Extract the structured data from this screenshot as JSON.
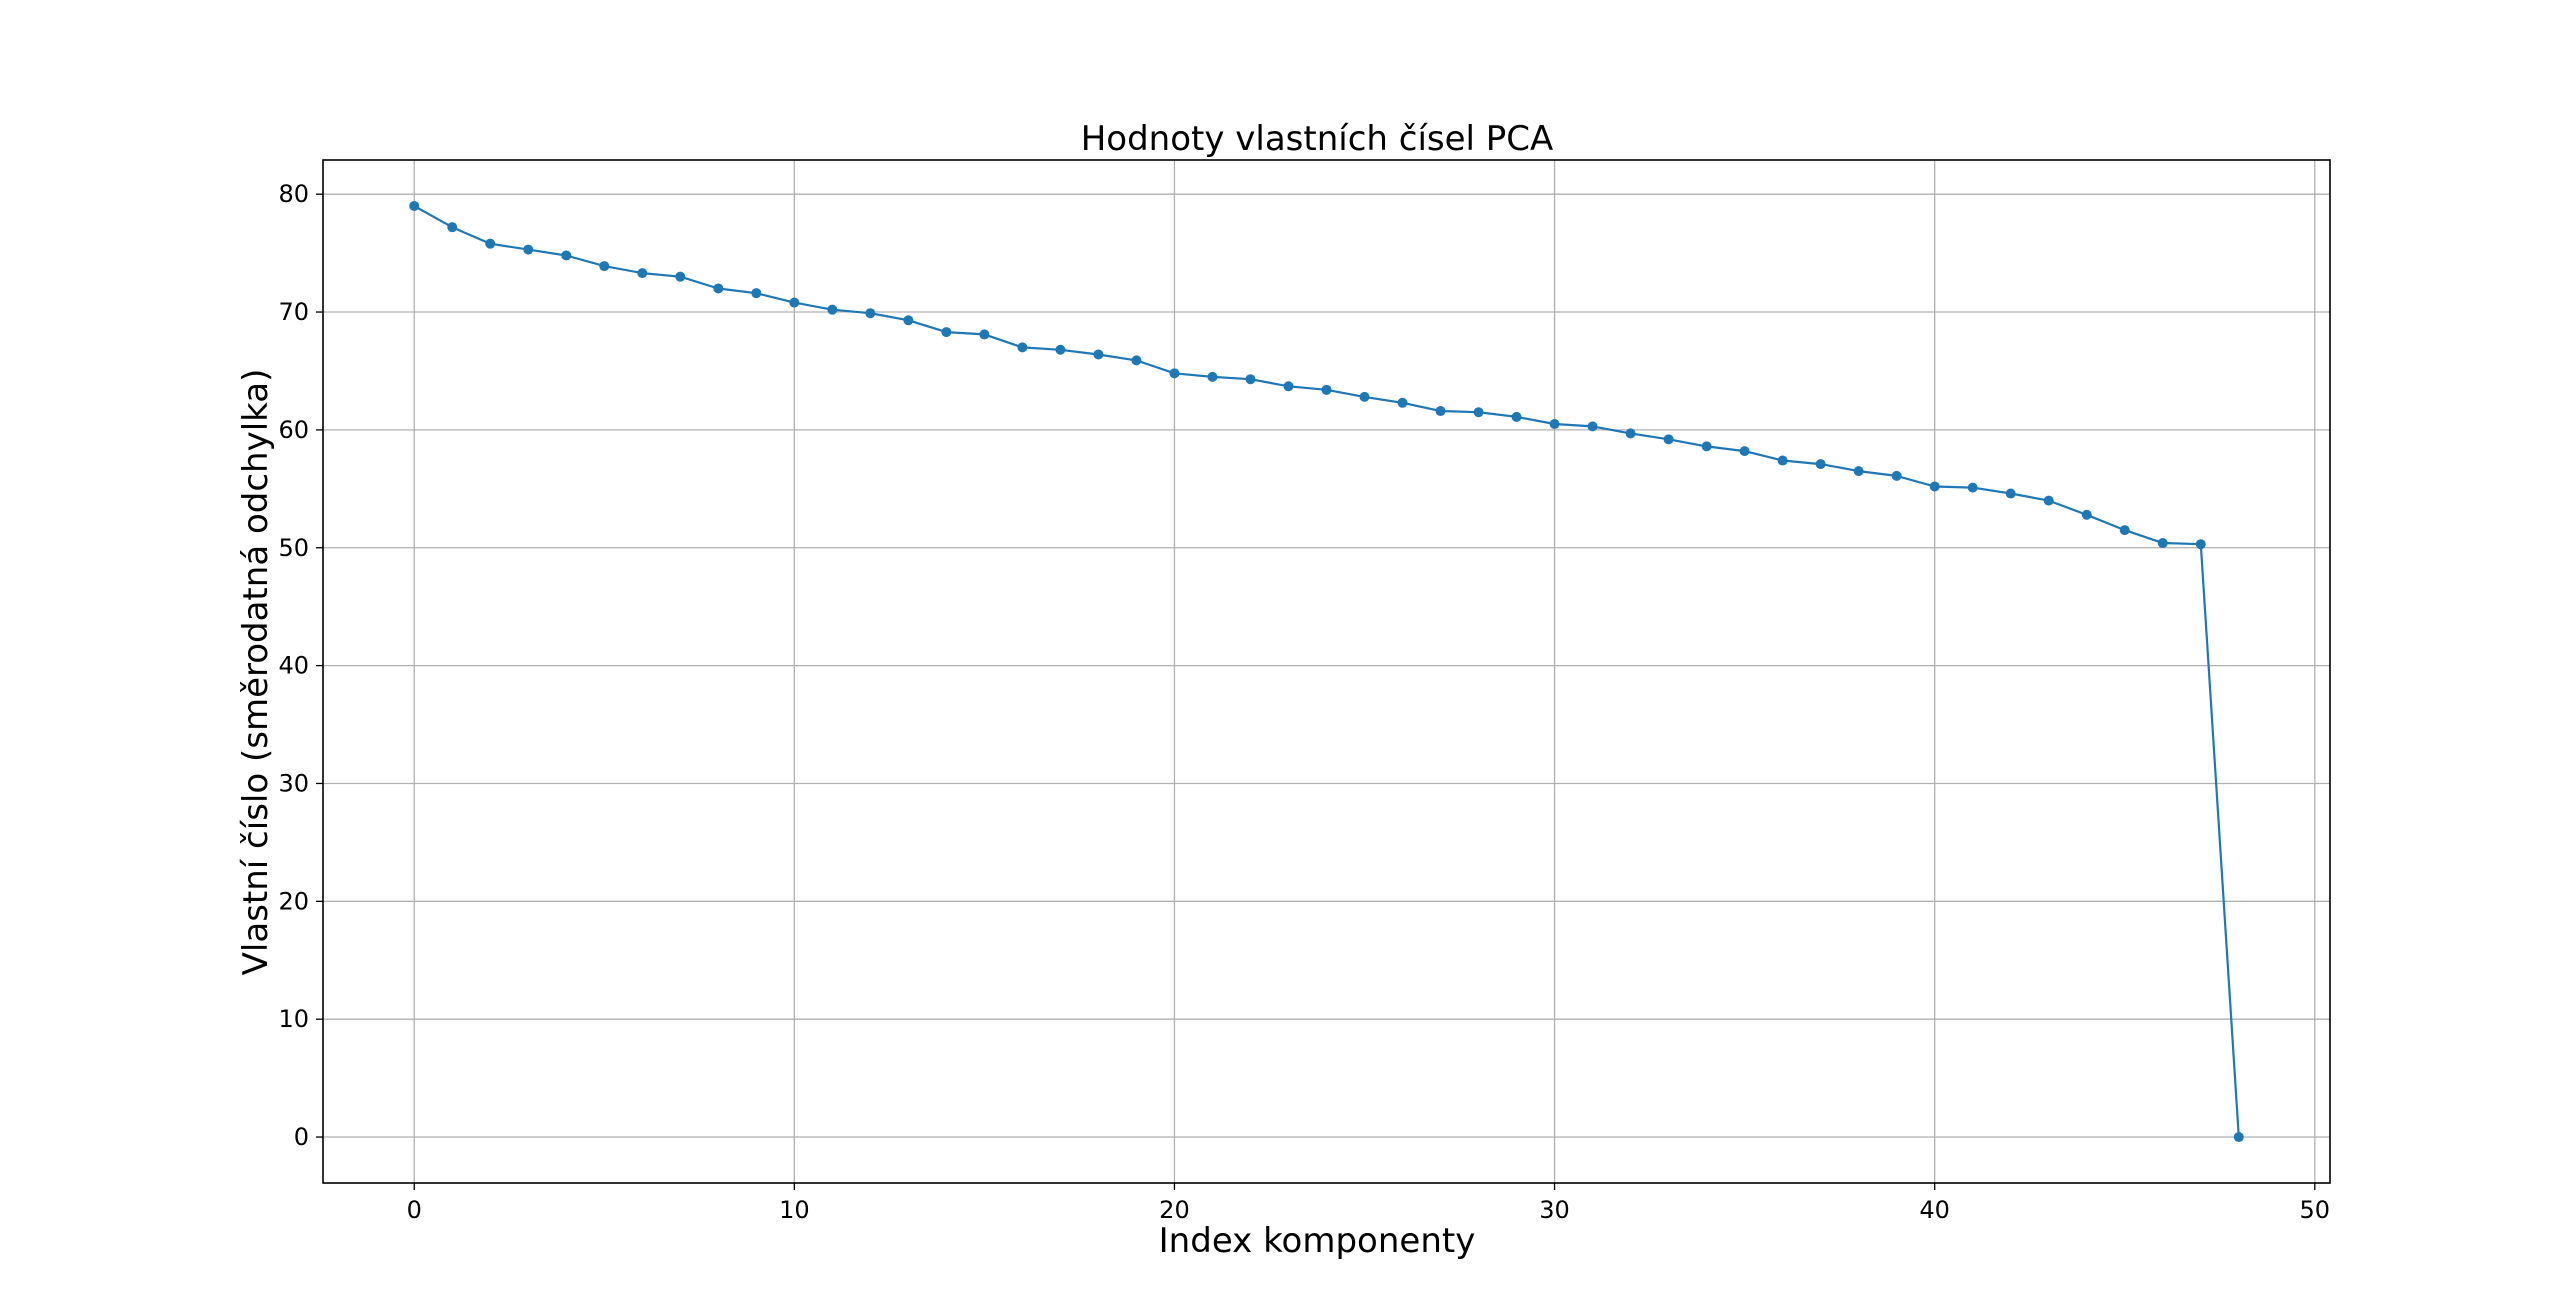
{
  "chart_data": {
    "type": "line",
    "title": "Hodnoty vlastních čísel PCA",
    "xlabel": "Index komponenty",
    "ylabel": "Vlastní číslo (směrodatná odchylka)",
    "xlim": [
      -2.4,
      50.4
    ],
    "ylim": [
      -3.9,
      82.9
    ],
    "xticks": [
      0,
      10,
      20,
      30,
      40,
      50
    ],
    "yticks": [
      0,
      10,
      20,
      30,
      40,
      50,
      60,
      70,
      80
    ],
    "grid": true,
    "line_color": "#1f77b4",
    "series": [
      {
        "x": [
          0,
          1,
          2,
          3,
          4,
          5,
          6,
          7,
          8,
          9,
          10,
          11,
          12,
          13,
          14,
          15,
          16,
          17,
          18,
          19,
          20,
          21,
          22,
          23,
          24,
          25,
          26,
          27,
          28,
          29,
          30,
          31,
          32,
          33,
          34,
          35,
          36,
          37,
          38,
          39,
          40,
          41,
          42,
          43,
          44,
          45,
          46,
          47,
          48
        ],
        "values": [
          79.0,
          77.2,
          75.8,
          75.3,
          74.8,
          73.9,
          73.3,
          73.0,
          72.0,
          71.6,
          70.8,
          70.2,
          69.9,
          69.3,
          68.3,
          68.1,
          67.0,
          66.8,
          66.4,
          65.9,
          64.8,
          64.5,
          64.3,
          63.7,
          63.4,
          62.8,
          62.3,
          61.6,
          61.5,
          61.1,
          60.5,
          60.3,
          59.7,
          59.2,
          58.6,
          58.2,
          57.4,
          57.1,
          56.5,
          56.1,
          55.2,
          55.1,
          54.6,
          54.0,
          52.8,
          51.5,
          50.4,
          50.3,
          0.0
        ]
      }
    ]
  }
}
